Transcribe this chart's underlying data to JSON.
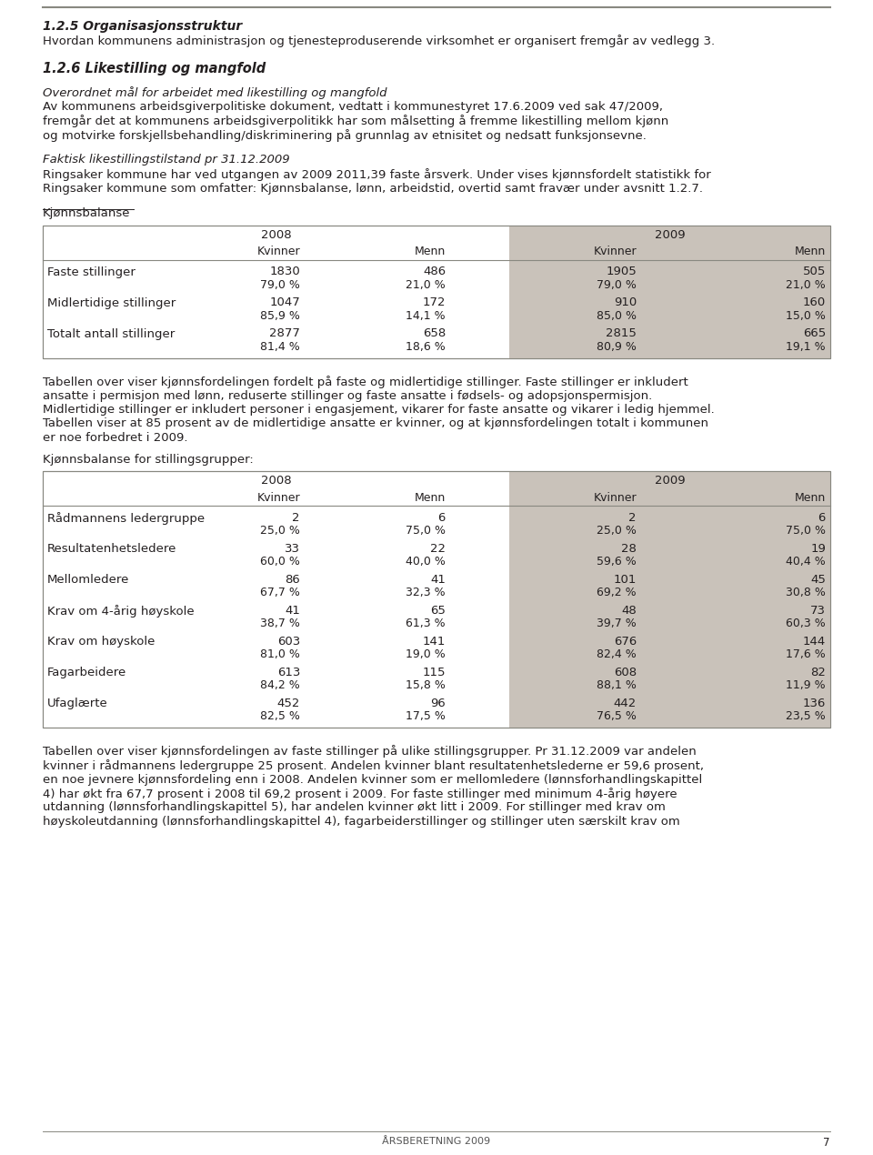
{
  "bg_color": "#ffffff",
  "text_color": "#231f20",
  "header_bg": "#c9c2ba",
  "table_border": "#888880",
  "section1_title": "1.2.5 Organisasjonsstruktur",
  "section1_body": "Hvordan kommunens administrasjon og tjenesteproduserende virksomhet er organisert fremgår av vedlegg 3.",
  "section2_title": "1.2.6 Likestilling og mangfold",
  "section2_italic": "Overordnet mål for arbeidet med likestilling og mangfold",
  "section2_body1": "Av kommunens arbeidsgiverpolitiske dokument, vedtatt i kommunestyret 17.6.2009 ved sak 47/2009,",
  "section2_body2": "fremgår det at kommunens arbeidsgiverpolitikk har som målsetting å fremme likestilling mellom kjønn",
  "section2_body3": "og motvirke forskjellsbehandling/diskriminering på grunnlag av etnisitet og nedsatt funksjonsevne.",
  "section3_italic": "Faktisk likestillingstilstand pr 31.12.2009",
  "section3_body1": "Ringsaker kommune har ved utgangen av 2009 2011,39 faste årsverk. Under vises kjønnsfordelt statistikk for",
  "section3_body2": "Ringsaker kommune som omfatter: Kjønnsbalanse, lønn, arbeidstid, overtid samt fravær under avsnitt 1.2.7.",
  "table1_title": "Kjønnsbalanse",
  "table1_rows": [
    {
      "label": "Faste stillinger",
      "vals": [
        "1830",
        "486",
        "1905",
        "505"
      ],
      "pcts": [
        "79,0 %",
        "21,0 %",
        "79,0 %",
        "21,0 %"
      ]
    },
    {
      "label": "Midlertidige stillinger",
      "vals": [
        "1047",
        "172",
        "910",
        "160"
      ],
      "pcts": [
        "85,9 %",
        "14,1 %",
        "85,0 %",
        "15,0 %"
      ]
    },
    {
      "label": "Totalt antall stillinger",
      "vals": [
        "2877",
        "658",
        "2815",
        "665"
      ],
      "pcts": [
        "81,4 %",
        "18,6 %",
        "80,9 %",
        "19,1 %"
      ]
    }
  ],
  "table1_note": [
    "Tabellen over viser kjønnsfordelingen fordelt på faste og midlertidige stillinger. Faste stillinger er inkludert",
    "ansatte i permisjon med lønn, reduserte stillinger og faste ansatte i fødsels- og adopsjonspermisjon.",
    "Midlertidige stillinger er inkludert personer i engasjement, vikarer for faste ansatte og vikarer i ledig hjemmel.",
    "Tabellen viser at 85 prosent av de midlertidige ansatte er kvinner, og at kjønnsfordelingen totalt i kommunen",
    "er noe forbedret i 2009."
  ],
  "table2_title": "Kjønnsbalanse for stillingsgrupper:",
  "table2_rows": [
    {
      "label": "Rådmannens ledergruppe",
      "vals": [
        "2",
        "6",
        "2",
        "6"
      ],
      "pcts": [
        "25,0 %",
        "75,0 %",
        "25,0 %",
        "75,0 %"
      ]
    },
    {
      "label": "Resultatenhetsledere",
      "vals": [
        "33",
        "22",
        "28",
        "19"
      ],
      "pcts": [
        "60,0 %",
        "40,0 %",
        "59,6 %",
        "40,4 %"
      ]
    },
    {
      "label": "Mellomledere",
      "vals": [
        "86",
        "41",
        "101",
        "45"
      ],
      "pcts": [
        "67,7 %",
        "32,3 %",
        "69,2 %",
        "30,8 %"
      ]
    },
    {
      "label": "Krav om 4-årig høyskole",
      "vals": [
        "41",
        "65",
        "48",
        "73"
      ],
      "pcts": [
        "38,7 %",
        "61,3 %",
        "39,7 %",
        "60,3 %"
      ]
    },
    {
      "label": "Krav om høyskole",
      "vals": [
        "603",
        "141",
        "676",
        "144"
      ],
      "pcts": [
        "81,0 %",
        "19,0 %",
        "82,4 %",
        "17,6 %"
      ]
    },
    {
      "label": "Fagarbeidere",
      "vals": [
        "613",
        "115",
        "608",
        "82"
      ],
      "pcts": [
        "84,2 %",
        "15,8 %",
        "88,1 %",
        "11,9 %"
      ]
    },
    {
      "label": "Ufaglærte",
      "vals": [
        "452",
        "96",
        "442",
        "136"
      ],
      "pcts": [
        "82,5 %",
        "17,5 %",
        "76,5 %",
        "23,5 %"
      ]
    }
  ],
  "table2_note": [
    "Tabellen over viser kjønnsfordelingen av faste stillinger på ulike stillingsgrupper. Pr 31.12.2009 var andelen",
    "kvinner i rådmannens ledergruppe 25 prosent. Andelen kvinner blant resultatenhetslederne er 59,6 prosent,",
    "en noe jevnere kjønnsfordeling enn i 2008. Andelen kvinner som er mellomledere (lønnsforhandlingskapittel",
    "4) har økt fra 67,7 prosent i 2008 til 69,2 prosent i 2009. For faste stillinger med minimum 4-årig høyere",
    "utdanning (lønnsforhandlingskapittel 5), har andelen kvinner økt litt i 2009. For stillinger med krav om",
    "høyskoleutdanning (lønnsforhandlingskapittel 4), fagarbeiderstillinger og stillinger uten særskilt krav om"
  ],
  "footer_text": "ÅRSBERETNING 2009",
  "footer_page": "7"
}
